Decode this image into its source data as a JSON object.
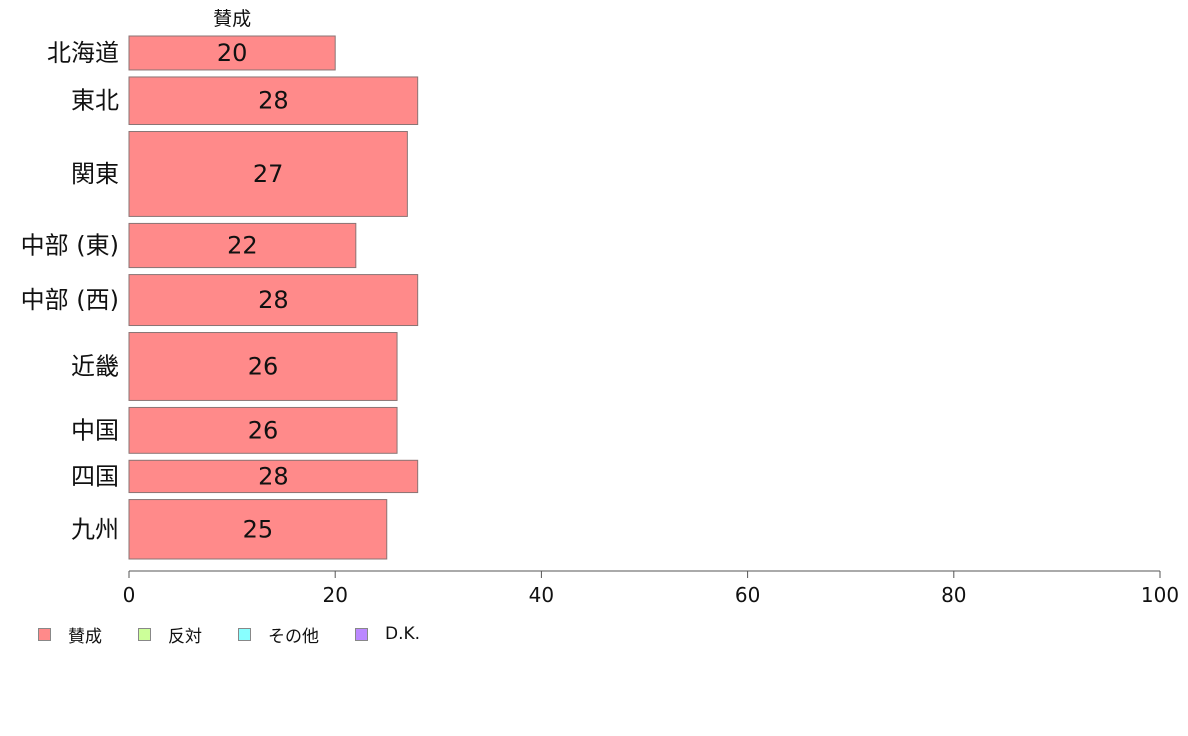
{
  "chart_data": {
    "type": "bar",
    "orientation": "horizontal",
    "stacked": true,
    "title": "",
    "xlabel": "",
    "ylabel": "",
    "xlim": [
      0,
      100
    ],
    "x_ticks": [
      0,
      20,
      40,
      60,
      80,
      100
    ],
    "grid": false,
    "legend_position": "bottom-left",
    "categories": [
      "北海道",
      "東北",
      "関東",
      "中部 (東)",
      "中部 (西)",
      "近畿",
      "中国",
      "四国",
      "九州"
    ],
    "category_weights": [
      20,
      28,
      50,
      26,
      30,
      40,
      27,
      19,
      35
    ],
    "series": [
      {
        "name": "賛成",
        "color": "#FF8A8A",
        "values": [
          20,
          28,
          27,
          22,
          28,
          26,
          26,
          28,
          25
        ]
      },
      {
        "name": "反対",
        "color": "#CCFF99",
        "values": [
          null,
          null,
          null,
          null,
          null,
          null,
          null,
          null,
          null
        ]
      },
      {
        "name": "その他",
        "color": "#88FFFF",
        "values": [
          null,
          null,
          null,
          null,
          null,
          null,
          null,
          null,
          null
        ]
      },
      {
        "name": "D.K.",
        "color": "#BB88FF",
        "values": [
          null,
          null,
          null,
          null,
          null,
          null,
          null,
          null,
          null
        ]
      }
    ],
    "series_header_label": "賛成"
  }
}
